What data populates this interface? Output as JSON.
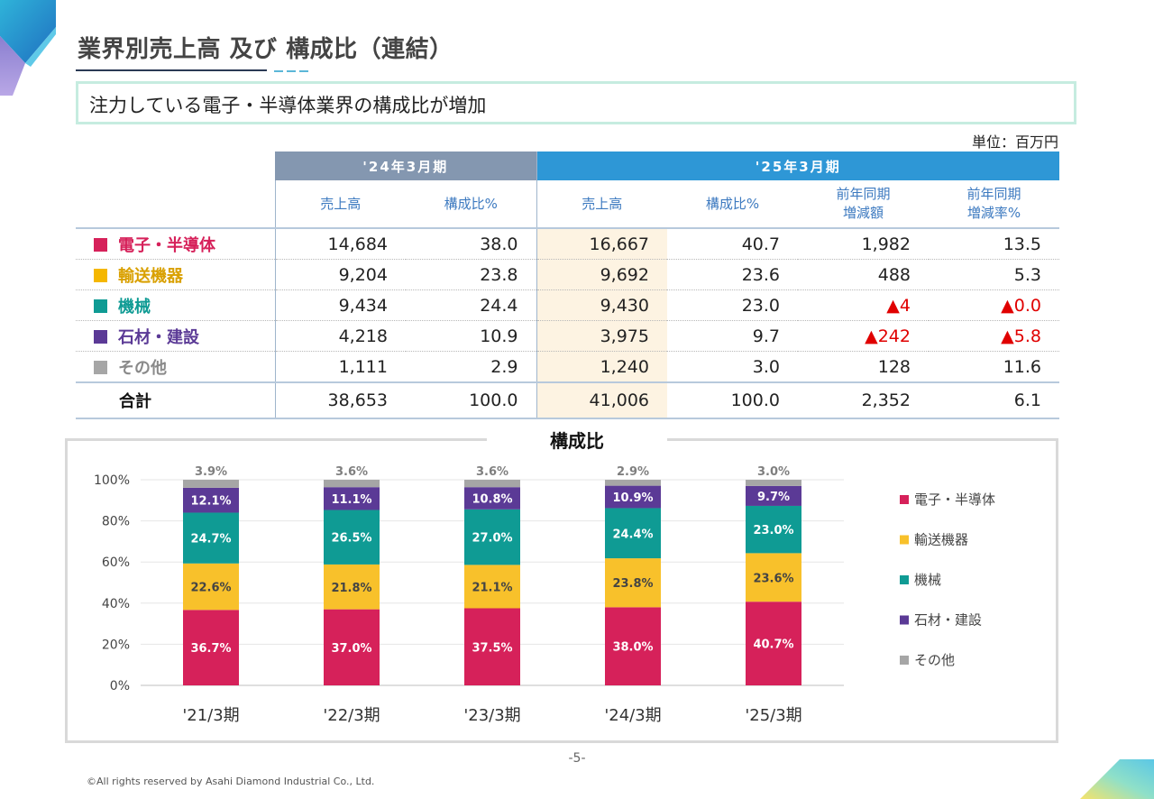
{
  "header": {
    "title": "業界別売上高 及び 構成比（連結）",
    "subtitle": "注力している電子・半導体業界の構成比が増加",
    "unit": "単位：百万円"
  },
  "table": {
    "period_24": "'24年3月期",
    "period_25": "'25年3月期",
    "col_sales": "売上高",
    "col_ratio": "構成比%",
    "col_diff_l1": "前年同期",
    "col_diff_l2": "増減額",
    "col_rate_l1": "前年同期",
    "col_rate_l2": "増減率%",
    "rows": [
      {
        "label": "電子・半導体",
        "color": "#d6215a",
        "s24": "14,684",
        "r24": "38.0",
        "s25": "16,667",
        "r25": "40.7",
        "diff": "1,982",
        "rate": "13.5",
        "diff_neg": false,
        "rate_neg": false
      },
      {
        "label": "輸送機器",
        "color": "#f5b700",
        "s24": "9,204",
        "r24": "23.8",
        "s25": "9,692",
        "r25": "23.6",
        "diff": "488",
        "rate": "5.3",
        "diff_neg": false,
        "rate_neg": false
      },
      {
        "label": "機械",
        "color": "#0f9b94",
        "s24": "9,434",
        "r24": "24.4",
        "s25": "9,430",
        "r25": "23.0",
        "diff": "▲4",
        "rate": "▲0.0",
        "diff_neg": true,
        "rate_neg": true
      },
      {
        "label": "石材・建設",
        "color": "#5b3a96",
        "s24": "4,218",
        "r24": "10.9",
        "s25": "3,975",
        "r25": "9.7",
        "diff": "▲242",
        "rate": "▲5.8",
        "diff_neg": true,
        "rate_neg": true
      },
      {
        "label": "その他",
        "color": "#a6a6a6",
        "s24": "1,111",
        "r24": "2.9",
        "s25": "1,240",
        "r25": "3.0",
        "diff": "128",
        "rate": "11.6",
        "diff_neg": false,
        "rate_neg": false
      }
    ],
    "total": {
      "label": "合計",
      "s24": "38,653",
      "r24": "100.0",
      "s25": "41,006",
      "r25": "100.0",
      "diff": "2,352",
      "rate": "6.1"
    }
  },
  "chart_data": {
    "type": "bar",
    "stacked": true,
    "title": "構成比",
    "categories": [
      "'21/3期",
      "'22/3期",
      "'23/3期",
      "'24/3期",
      "'25/3期"
    ],
    "yticks": [
      "0%",
      "20%",
      "40%",
      "60%",
      "80%",
      "100%"
    ],
    "ylim": [
      0,
      100
    ],
    "legend_position": "right",
    "series": [
      {
        "name": "電子・半導体",
        "color": "#d6215a",
        "label_color": "#ffffff",
        "values": [
          36.7,
          37.0,
          37.5,
          38.0,
          40.7
        ],
        "labels": [
          "36.7%",
          "37.0%",
          "37.5%",
          "38.0%",
          "40.7%"
        ]
      },
      {
        "name": "輸送機器",
        "color": "#f8c12b",
        "label_color": "#444444",
        "values": [
          22.6,
          21.8,
          21.1,
          23.8,
          23.6
        ],
        "labels": [
          "22.6%",
          "21.8%",
          "21.1%",
          "23.8%",
          "23.6%"
        ]
      },
      {
        "name": "機械",
        "color": "#0f9b94",
        "label_color": "#ffffff",
        "values": [
          24.7,
          26.5,
          27.0,
          24.4,
          23.0
        ],
        "labels": [
          "24.7%",
          "26.5%",
          "27.0%",
          "24.4%",
          "23.0%"
        ]
      },
      {
        "name": "石材・建設",
        "color": "#5b3a96",
        "label_color": "#ffffff",
        "values": [
          12.1,
          11.1,
          10.8,
          10.9,
          9.7
        ],
        "labels": [
          "12.1%",
          "11.1%",
          "10.8%",
          "10.9%",
          "9.7%"
        ]
      },
      {
        "name": "その他",
        "color": "#a6a6a6",
        "label_color": "#7f7f7f",
        "values": [
          3.9,
          3.6,
          3.6,
          2.9,
          3.0
        ],
        "labels": [
          "3.9%",
          "3.6%",
          "3.6%",
          "2.9%",
          "3.0%"
        ]
      }
    ]
  },
  "footer": {
    "page": "-5-",
    "copyright": "©All rights reserved by Asahi Diamond Industrial Co., Ltd."
  }
}
